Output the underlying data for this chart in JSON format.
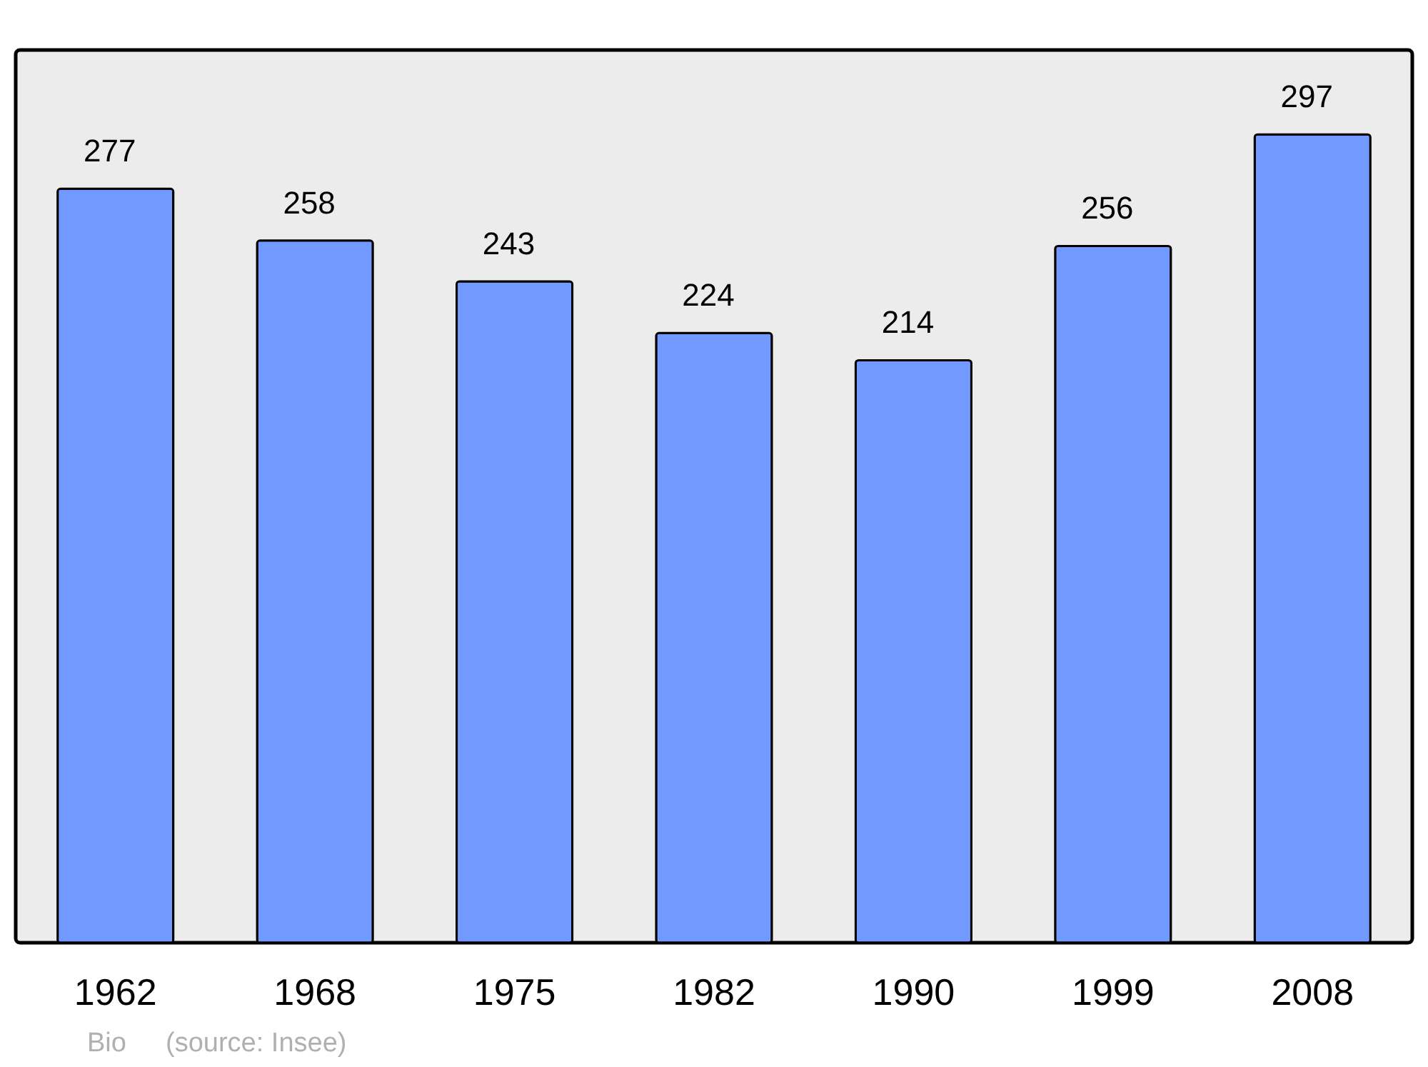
{
  "chart_data": {
    "type": "bar",
    "categories": [
      "1962",
      "1968",
      "1975",
      "1982",
      "1990",
      "1999",
      "2008"
    ],
    "values": [
      277,
      258,
      243,
      224,
      214,
      256,
      297
    ],
    "color": "#7299ff",
    "ylim": [
      0,
      328
    ],
    "data_labels": true,
    "tick_labels": "x",
    "annotations": [
      "Bio",
      "(source: Insee)"
    ]
  }
}
